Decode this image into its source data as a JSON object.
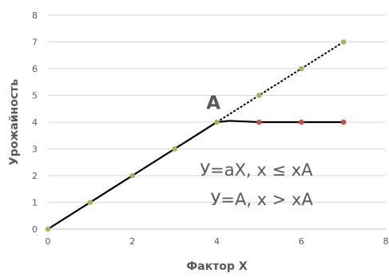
{
  "chart_data": {
    "type": "line",
    "xlabel": "Фактор X",
    "ylabel": "Урожайность",
    "xlim": [
      0,
      8
    ],
    "ylim": [
      0,
      8
    ],
    "x_ticks": [
      "0",
      "2",
      "4",
      "6",
      "8"
    ],
    "y_ticks": [
      "0",
      "1",
      "2",
      "3",
      "4",
      "5",
      "6",
      "7",
      "8"
    ],
    "grid": "horizontal",
    "legend": "none",
    "series": [
      {
        "style": "dashed",
        "color": "#000000",
        "marker_color": "#9bbb59",
        "points": [
          [
            0,
            0
          ],
          [
            1,
            1
          ],
          [
            2,
            2
          ],
          [
            3,
            3
          ],
          [
            4,
            4
          ],
          [
            5,
            5
          ],
          [
            6,
            6
          ],
          [
            7,
            7
          ]
        ]
      },
      {
        "style": "solid",
        "color": "#000000",
        "marker_color": "#9bbb59",
        "points": [
          [
            0,
            0
          ],
          [
            1,
            1
          ],
          [
            2,
            2
          ],
          [
            3,
            3
          ],
          [
            4,
            4
          ]
        ]
      },
      {
        "style": "solid",
        "color": "#000000",
        "marker_color": "#c0504d",
        "points": [
          [
            5,
            4
          ],
          [
            6,
            4
          ],
          [
            7,
            4
          ]
        ]
      }
    ],
    "annotations": [
      {
        "text": "A",
        "x": 3.75,
        "y": 4.5
      },
      {
        "text": "У=aX, x ≤ xA",
        "x": 3.6,
        "y": 2.0
      },
      {
        "text": "У=A, x > xA",
        "x": 3.85,
        "y": 0.9
      }
    ]
  }
}
